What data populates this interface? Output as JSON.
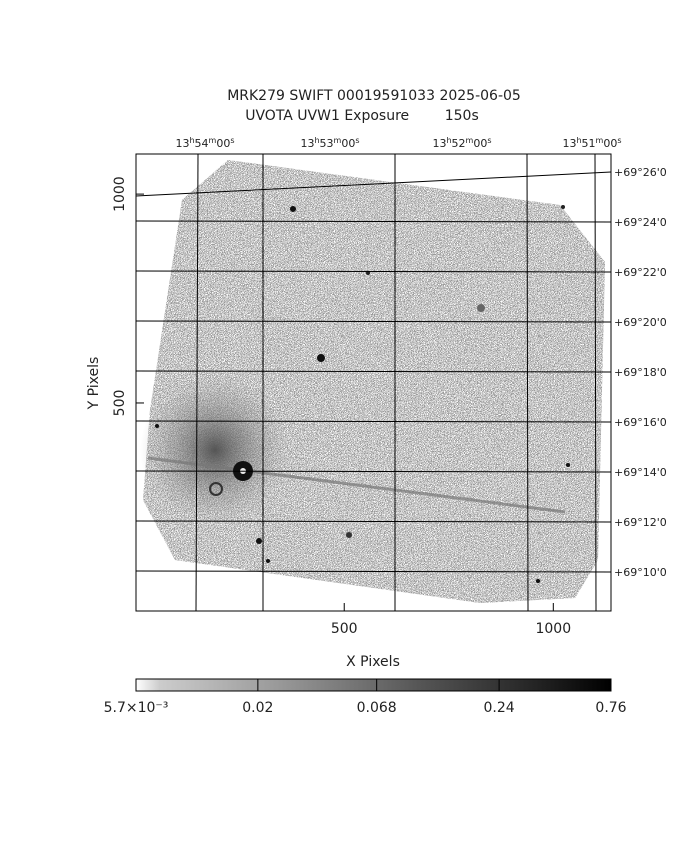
{
  "chart_data": {
    "type": "image",
    "title": "MRK279 SWIFT 00019591033 2025-06-05",
    "subtitle": "UVOTA UVW1 Exposure        150s",
    "xlabel": "X Pixels",
    "ylabel": "Y Pixels",
    "xlim": [
      2,
      1138
    ],
    "xticks": [
      500,
      1000
    ],
    "ylim": [
      2,
      1096
    ],
    "yticks": [
      500,
      1000
    ],
    "ra_labels": [
      "13h54m00s",
      "13h53m00s",
      "13h52m00s",
      "13h51m00s"
    ],
    "dec_labels": [
      "+69°26'0",
      "+69°24'0",
      "+69°22'0",
      "+69°20'0",
      "+69°18'0",
      "+69°16'0",
      "+69°14'0",
      "+69°12'0",
      "+69°10'0"
    ],
    "colorbar": {
      "scale": "log",
      "lim": [
        0.0057,
        0.76
      ],
      "ticks": [
        {
          "value": 0.0057,
          "label": "5.7×10⁻³"
        },
        0.02,
        0.068,
        0.24,
        0.76
      ]
    }
  }
}
